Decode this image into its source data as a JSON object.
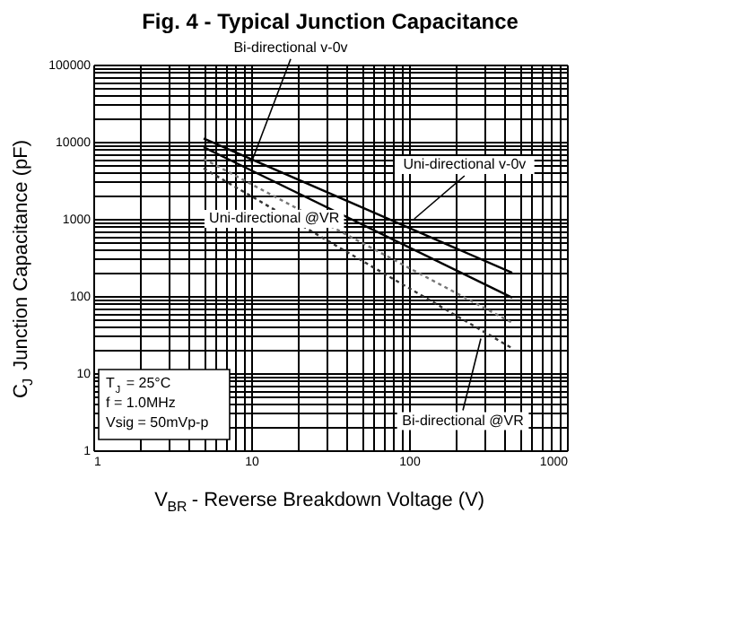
{
  "chart_data": {
    "type": "line",
    "title": "Fig. 4 - Typical Junction Capacitance",
    "xlabel": "V$_{BR}$ - Reverse Breakdown Voltage (V)",
    "ylabel": "C$_{J}$ Junction Capacitance  (pF)",
    "log": "xy",
    "grid": true,
    "xlim": [
      1,
      1000
    ],
    "ylim": [
      1,
      100000
    ],
    "xticks": [
      1,
      {
        "value": 2,
        "label": null
      },
      {
        "value": 3,
        "label": null
      },
      {
        "value": 4,
        "label": null
      },
      {
        "value": 5,
        "label": null
      },
      {
        "value": 6,
        "label": null
      },
      {
        "value": 7,
        "label": null
      },
      {
        "value": 8,
        "label": null
      },
      {
        "value": 9,
        "label": null
      },
      10,
      {
        "value": 20,
        "label": null
      },
      {
        "value": 30,
        "label": null
      },
      {
        "value": 40,
        "label": null
      },
      {
        "value": 50,
        "label": null
      },
      {
        "value": 60,
        "label": null
      },
      {
        "value": 70,
        "label": null
      },
      {
        "value": 80,
        "label": null
      },
      {
        "value": 90,
        "label": null
      },
      100,
      {
        "value": 200,
        "label": null
      },
      {
        "value": 300,
        "label": null
      },
      {
        "value": 400,
        "label": null
      },
      {
        "value": 500,
        "label": null
      },
      {
        "value": 600,
        "label": null
      },
      {
        "value": 700,
        "label": null
      },
      {
        "value": 800,
        "label": null
      },
      {
        "value": 900,
        "label": null
      },
      1000
    ],
    "yticks": [
      1,
      {
        "value": 2,
        "label": null
      },
      {
        "value": 3,
        "label": null
      },
      {
        "value": 4,
        "label": null
      },
      {
        "value": 5,
        "label": null
      },
      {
        "value": 6,
        "label": null
      },
      {
        "value": 7,
        "label": null
      },
      {
        "value": 8,
        "label": null
      },
      {
        "value": 9,
        "label": null
      },
      10,
      {
        "value": 20,
        "label": null
      },
      {
        "value": 30,
        "label": null
      },
      {
        "value": 40,
        "label": null
      },
      {
        "value": 50,
        "label": null
      },
      {
        "value": 60,
        "label": null
      },
      {
        "value": 70,
        "label": null
      },
      {
        "value": 80,
        "label": null
      },
      {
        "value": 90,
        "label": null
      },
      100,
      {
        "value": 200,
        "label": null
      },
      {
        "value": 300,
        "label": null
      },
      {
        "value": 400,
        "label": null
      },
      {
        "value": 500,
        "label": null
      },
      {
        "value": 600,
        "label": null
      },
      {
        "value": 700,
        "label": null
      },
      {
        "value": 800,
        "label": null
      },
      {
        "value": 900,
        "label": null
      },
      1000,
      {
        "value": 2000,
        "label": null
      },
      {
        "value": 3000,
        "label": null
      },
      {
        "value": 4000,
        "label": null
      },
      {
        "value": 5000,
        "label": null
      },
      {
        "value": 6000,
        "label": null
      },
      {
        "value": 7000,
        "label": null
      },
      {
        "value": 8000,
        "label": null
      },
      {
        "value": 9000,
        "label": null
      },
      10000,
      {
        "value": 20000,
        "label": null
      },
      {
        "value": 30000,
        "label": null
      },
      {
        "value": 40000,
        "label": null
      },
      {
        "value": 50000,
        "label": null
      },
      {
        "value": 60000,
        "label": null
      },
      {
        "value": 70000,
        "label": null
      },
      {
        "value": 80000,
        "label": null
      },
      {
        "value": 90000,
        "label": null
      },
      100000
    ],
    "x": [
      5,
      450
    ],
    "series": [
      {
        "color": "#000000",
        "line_style": "solid",
        "values": [
          11000,
          200
        ]
      },
      {
        "color": "#000000",
        "line_style": "solid",
        "values": [
          8500,
          95
        ]
      },
      {
        "color": "#777777",
        "line_style": "dotted",
        "values": [
          6000,
          45
        ]
      },
      {
        "color": "#333333",
        "line_style": "dotted",
        "values": [
          4500,
          21
        ]
      }
    ],
    "annotations": [
      {
        "text": "Bi-directional v-0v",
        "x": 10,
        "y": 5300
      },
      {
        "text": "Uni-directional v-0v",
        "x": 108,
        "y": 1000
      },
      {
        "text": "Uni-directional @VR",
        "x": 14,
        "y": 1000
      },
      {
        "text": "Bi-directional @VR",
        "x": 285,
        "y": 28
      },
      "T$_{J}$ = 25°C",
      "f = 1.0MHz",
      "Vsig = 50mVp-p"
    ]
  }
}
